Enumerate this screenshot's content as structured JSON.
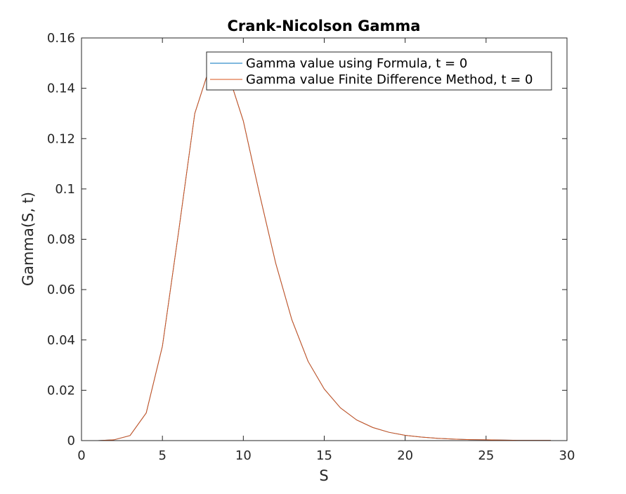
{
  "chart_data": {
    "type": "line",
    "title": "Crank-Nicolson Gamma",
    "xlabel": "S",
    "ylabel": "Gamma(S, t)",
    "xlim": [
      0,
      30
    ],
    "ylim": [
      0,
      0.16
    ],
    "xticks": [
      "0",
      "5",
      "10",
      "15",
      "20",
      "25",
      "30"
    ],
    "yticks": [
      "0",
      "0.02",
      "0.04",
      "0.06",
      "0.08",
      "0.1",
      "0.12",
      "0.14",
      "0.16"
    ],
    "grid": false,
    "legend_position": "top-right",
    "x": [
      1,
      2,
      3,
      4,
      5,
      6,
      7,
      8,
      9,
      10,
      11,
      12,
      13,
      14,
      15,
      16,
      17,
      18,
      19,
      20,
      21,
      22,
      23,
      24,
      25,
      26,
      27,
      28,
      29
    ],
    "series": [
      {
        "name": "Gamma value using Formula, t = 0",
        "color": "#0072BD",
        "values": [
          0.0,
          0.0003,
          0.002,
          0.011,
          0.0375,
          0.083,
          0.13,
          0.15,
          0.147,
          0.127,
          0.098,
          0.0705,
          0.048,
          0.0315,
          0.0205,
          0.013,
          0.0082,
          0.0052,
          0.0033,
          0.0021,
          0.0014,
          0.0009,
          0.0006,
          0.0004,
          0.0003,
          0.0002,
          0.0001,
          0.0001,
          0.0001
        ]
      },
      {
        "name": "Gamma value Finite Difference Method, t = 0",
        "color": "#D95319",
        "values": [
          0.0,
          0.0003,
          0.002,
          0.011,
          0.0375,
          0.083,
          0.13,
          0.15,
          0.147,
          0.127,
          0.098,
          0.0705,
          0.048,
          0.0315,
          0.0205,
          0.013,
          0.0082,
          0.0052,
          0.0033,
          0.0021,
          0.0014,
          0.0009,
          0.0006,
          0.0004,
          0.0003,
          0.0002,
          0.0001,
          0.0001,
          0.0001
        ]
      }
    ]
  }
}
